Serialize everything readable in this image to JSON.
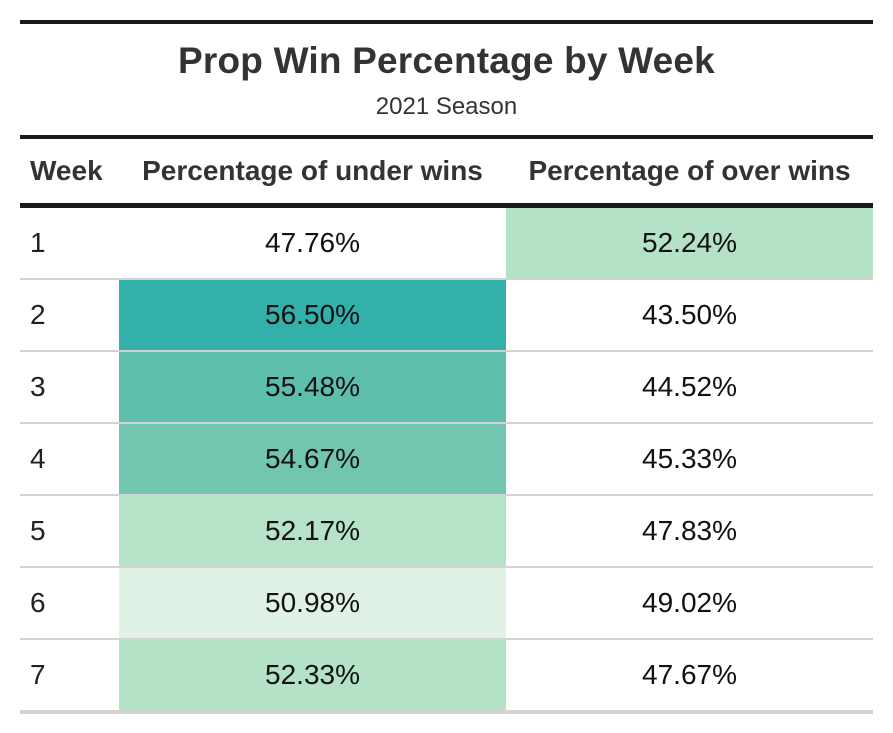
{
  "chart_data": {
    "type": "table",
    "title": "Prop Win Percentage by Week",
    "subtitle": "2021 Season",
    "columns": [
      "Week",
      "Percentage of under wins",
      "Percentage of over wins"
    ],
    "rows": [
      {
        "week": "1",
        "under": "47.76%",
        "over": "52.24%",
        "under_bg": "#ffffff",
        "over_bg": "#b4e2c6"
      },
      {
        "week": "2",
        "under": "56.50%",
        "over": "43.50%",
        "under_bg": "#34b0ab",
        "over_bg": "#ffffff"
      },
      {
        "week": "3",
        "under": "55.48%",
        "over": "44.52%",
        "under_bg": "#5dbeac",
        "over_bg": "#ffffff"
      },
      {
        "week": "4",
        "under": "54.67%",
        "over": "45.33%",
        "under_bg": "#72c5af",
        "over_bg": "#ffffff"
      },
      {
        "week": "5",
        "under": "52.17%",
        "over": "47.83%",
        "under_bg": "#b6e2c7",
        "over_bg": "#ffffff"
      },
      {
        "week": "6",
        "under": "50.98%",
        "over": "49.02%",
        "under_bg": "#e0f2e6",
        "over_bg": "#ffffff"
      },
      {
        "week": "7",
        "under": "52.33%",
        "over": "47.67%",
        "under_bg": "#b4e2c6",
        "over_bg": "#ffffff"
      }
    ]
  }
}
